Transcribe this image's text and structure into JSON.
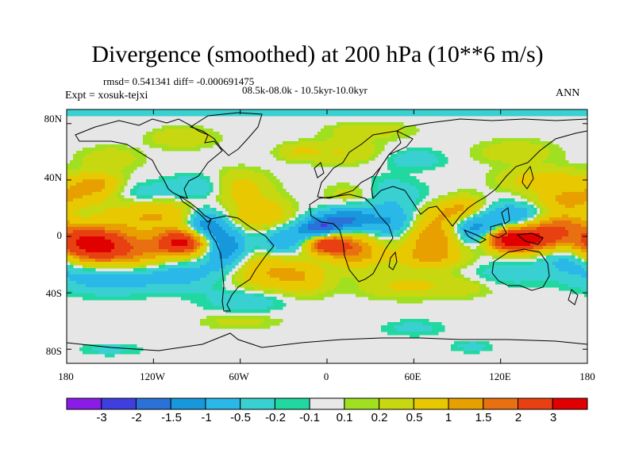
{
  "chart_data": {
    "type": "heatmap",
    "title": "Divergence (smoothed) at 200 hPa (10**6 m/s)",
    "stats": "rmsd= 0.541341 diff= -0.000691475",
    "period": "08.5k-08.0k - 10.5kyr-10.0kyr",
    "experiment": "Expt = xosuk-tejxi",
    "season": "ANN",
    "lat_ticks": [
      "80N",
      "40N",
      "0",
      "40S",
      "80S"
    ],
    "lat_values": [
      80,
      40,
      0,
      -40,
      -80
    ],
    "lon_ticks": [
      "180",
      "120W",
      "60W",
      "0",
      "60E",
      "120E",
      "180"
    ],
    "lon_values": [
      -180,
      -120,
      -60,
      0,
      60,
      120,
      180
    ],
    "xlim": [
      -180,
      180
    ],
    "ylim": [
      -90,
      90
    ],
    "colorbar": {
      "labels": [
        "-3",
        "-2",
        "-1.5",
        "-1",
        "-0.5",
        "-0.2",
        "-0.1",
        "0.1",
        "0.2",
        "0.5",
        "1",
        "1.5",
        "2",
        "3"
      ],
      "colors": [
        "#8b1ce8",
        "#3f3fe0",
        "#2a72d8",
        "#1898dc",
        "#2ab8e8",
        "#38d0d0",
        "#20d8a0",
        "#e8e8e8",
        "#a0e020",
        "#c8d810",
        "#e8c800",
        "#e8a000",
        "#e87010",
        "#e84010",
        "#e00000"
      ]
    },
    "anomalies": [
      {
        "lon": -165,
        "lat": -5,
        "amp": 3.0,
        "w": 18,
        "h": 8
      },
      {
        "lon": -140,
        "lat": -12,
        "amp": 1.5,
        "w": 28,
        "h": 10
      },
      {
        "lon": -100,
        "lat": -4,
        "amp": 3.0,
        "w": 12,
        "h": 6
      },
      {
        "lon": -120,
        "lat": 15,
        "amp": 1.0,
        "w": 25,
        "h": 8
      },
      {
        "lon": -85,
        "lat": 8,
        "amp": -1.5,
        "w": 10,
        "h": 8
      },
      {
        "lon": -70,
        "lat": -8,
        "amp": -1.5,
        "w": 10,
        "h": 10
      },
      {
        "lon": -150,
        "lat": -28,
        "amp": -1.0,
        "w": 25,
        "h": 8
      },
      {
        "lon": -100,
        "lat": -25,
        "amp": -0.8,
        "w": 20,
        "h": 8
      },
      {
        "lon": -165,
        "lat": 30,
        "amp": 0.8,
        "w": 18,
        "h": 6
      },
      {
        "lon": -160,
        "lat": 38,
        "amp": 1.0,
        "w": 12,
        "h": 5
      },
      {
        "lon": -135,
        "lat": 30,
        "amp": -0.5,
        "w": 20,
        "h": 6
      },
      {
        "lon": -90,
        "lat": 35,
        "amp": -0.5,
        "w": 15,
        "h": 6
      },
      {
        "lon": -60,
        "lat": 35,
        "amp": 0.7,
        "w": 14,
        "h": 8
      },
      {
        "lon": -45,
        "lat": 15,
        "amp": 1.0,
        "w": 14,
        "h": 8
      },
      {
        "lon": -30,
        "lat": -3,
        "amp": -1.0,
        "w": 12,
        "h": 8
      },
      {
        "lon": -40,
        "lat": -25,
        "amp": 1.0,
        "w": 20,
        "h": 10
      },
      {
        "lon": -15,
        "lat": -30,
        "amp": 0.6,
        "w": 12,
        "h": 8
      },
      {
        "lon": -55,
        "lat": -45,
        "amp": -0.5,
        "w": 20,
        "h": 6
      },
      {
        "lon": -5,
        "lat": 5,
        "amp": -2.0,
        "w": 10,
        "h": 6
      },
      {
        "lon": 15,
        "lat": 12,
        "amp": -1.5,
        "w": 12,
        "h": 6
      },
      {
        "lon": 0,
        "lat": -5,
        "amp": 3.0,
        "w": 10,
        "h": 5
      },
      {
        "lon": 20,
        "lat": -10,
        "amp": 1.5,
        "w": 12,
        "h": 8
      },
      {
        "lon": 45,
        "lat": 10,
        "amp": -1.0,
        "w": 12,
        "h": 8
      },
      {
        "lon": 40,
        "lat": 30,
        "amp": -0.5,
        "w": 18,
        "h": 8
      },
      {
        "lon": 20,
        "lat": 30,
        "amp": 0.5,
        "w": 14,
        "h": 6
      },
      {
        "lon": 75,
        "lat": 0,
        "amp": 1.5,
        "w": 15,
        "h": 8
      },
      {
        "lon": 70,
        "lat": -15,
        "amp": 1.0,
        "w": 18,
        "h": 6
      },
      {
        "lon": 80,
        "lat": 15,
        "amp": 0.8,
        "w": 12,
        "h": 6
      },
      {
        "lon": 100,
        "lat": 5,
        "amp": -1.5,
        "w": 12,
        "h": 8
      },
      {
        "lon": 95,
        "lat": 20,
        "amp": 1.0,
        "w": 10,
        "h": 6
      },
      {
        "lon": 130,
        "lat": 15,
        "amp": -1.0,
        "w": 15,
        "h": 6
      },
      {
        "lon": 140,
        "lat": -2,
        "amp": 3.0,
        "w": 16,
        "h": 6
      },
      {
        "lon": 125,
        "lat": -3,
        "amp": 2.0,
        "w": 10,
        "h": 5
      },
      {
        "lon": 160,
        "lat": 8,
        "amp": 1.5,
        "w": 15,
        "h": 6
      },
      {
        "lon": 165,
        "lat": 25,
        "amp": 1.0,
        "w": 15,
        "h": 6
      },
      {
        "lon": 150,
        "lat": 40,
        "amp": 0.8,
        "w": 20,
        "h": 6
      },
      {
        "lon": 170,
        "lat": -15,
        "amp": -1.0,
        "w": 15,
        "h": 8
      },
      {
        "lon": 120,
        "lat": -30,
        "amp": -0.5,
        "w": 20,
        "h": 8
      },
      {
        "lon": 100,
        "lat": -35,
        "amp": 0.5,
        "w": 25,
        "h": 6
      },
      {
        "lon": 50,
        "lat": -35,
        "amp": 0.5,
        "w": 20,
        "h": 6
      },
      {
        "lon": 10,
        "lat": 60,
        "amp": 0.5,
        "w": 20,
        "h": 6
      },
      {
        "lon": -100,
        "lat": 70,
        "amp": 0.5,
        "w": 15,
        "h": 5
      },
      {
        "lon": 30,
        "lat": 75,
        "amp": 0.4,
        "w": 20,
        "h": 4
      },
      {
        "lon": 130,
        "lat": 60,
        "amp": 0.4,
        "w": 20,
        "h": 6
      },
      {
        "lon": -150,
        "lat": 55,
        "amp": 0.4,
        "w": 15,
        "h": 6
      },
      {
        "lon": 60,
        "lat": 55,
        "amp": -0.4,
        "w": 15,
        "h": 5
      },
      {
        "lon": -20,
        "lat": 60,
        "amp": 0.4,
        "w": 10,
        "h": 4
      },
      {
        "lon": 0,
        "lat": 88,
        "amp": -0.4,
        "w": 200,
        "h": 2
      },
      {
        "lon": -60,
        "lat": -60,
        "amp": 0.3,
        "w": 20,
        "h": 4
      },
      {
        "lon": 60,
        "lat": -65,
        "amp": -0.3,
        "w": 15,
        "h": 4
      },
      {
        "lon": -150,
        "lat": -80,
        "amp": -0.3,
        "w": 15,
        "h": 3
      },
      {
        "lon": 100,
        "lat": -78,
        "amp": -0.3,
        "w": 10,
        "h": 3
      }
    ]
  }
}
